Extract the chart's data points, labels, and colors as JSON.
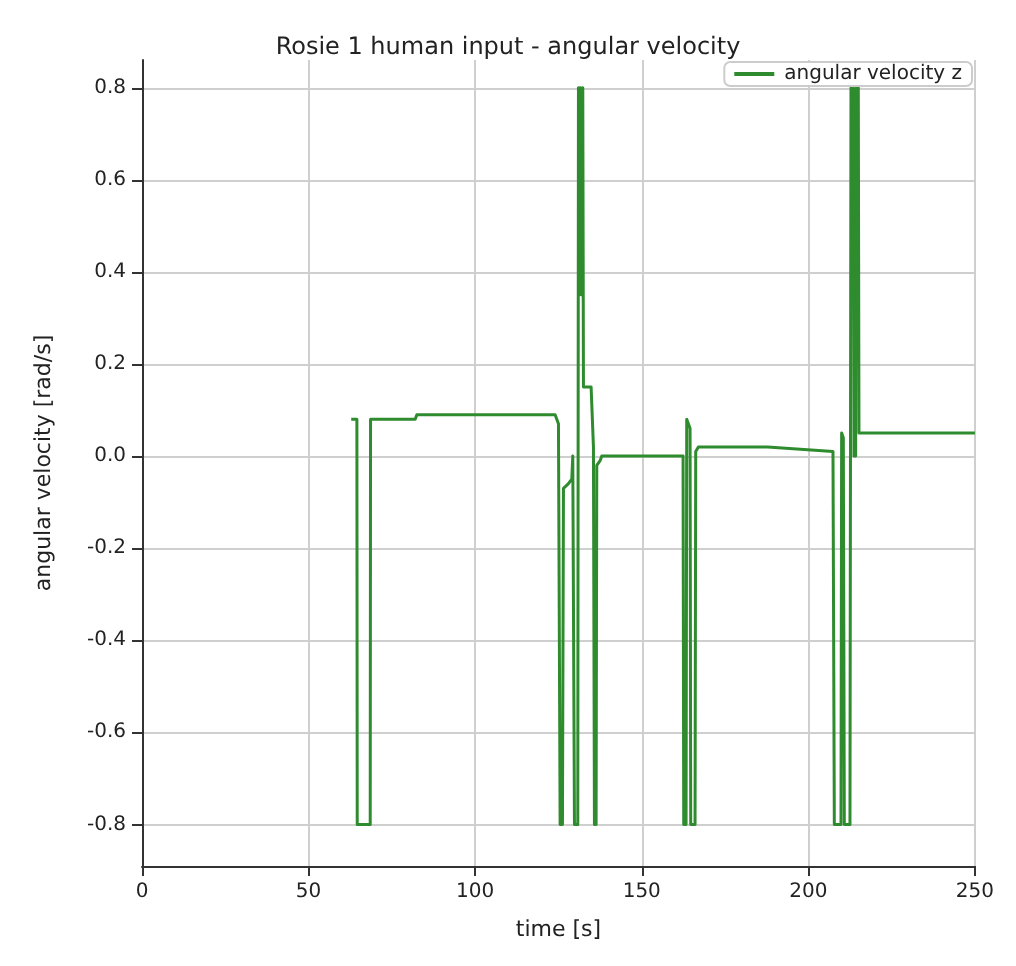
{
  "chart_data": {
    "type": "line",
    "title": "Rosie 1 human input - angular velocity",
    "xlabel": "time [s]",
    "ylabel": "angular velocity [rad/s]",
    "xlim": [
      0,
      250
    ],
    "xticks": [
      0,
      50,
      100,
      150,
      200,
      250
    ],
    "ylim": [
      -0.89,
      0.86
    ],
    "yticks": [
      -0.8,
      -0.6,
      -0.4,
      -0.2,
      {
        "value": 0,
        "label": "0.0"
      },
      0.2,
      0.4,
      0.6,
      0.8
    ],
    "grid": true,
    "legend": "top right",
    "series": [
      {
        "name": "angular velocity z",
        "color": "#2e8b2e",
        "x": [
          62.8,
          64.5,
          64.6,
          68.5,
          68.6,
          82,
          82.5,
          124,
          125,
          125.5,
          126.2,
          126.5,
          128,
          129,
          129.3,
          129.6,
          129.8,
          130.8,
          131,
          131.3,
          131.6,
          132,
          132.3,
          132.5,
          134.8,
          135.5,
          135.8,
          136.3,
          136.5,
          137.5,
          138,
          162.4,
          162.6,
          163.3,
          163.5,
          164,
          164.5,
          164.7,
          166,
          166.2,
          167,
          187.8,
          207.4,
          207.8,
          209.8,
          210,
          210.5,
          210.8,
          212.5,
          212.8,
          213.5,
          213.7,
          214.2,
          214.4,
          215,
          215.2,
          250
        ],
        "values": [
          0.08,
          0.08,
          -0.8,
          -0.8,
          0.08,
          0.08,
          0.09,
          0.09,
          0.07,
          -0.8,
          -0.8,
          -0.07,
          -0.06,
          -0.05,
          0,
          0,
          -0.8,
          -0.8,
          0.8,
          0.35,
          0.8,
          0.35,
          0.8,
          0.15,
          0.15,
          0.02,
          -0.8,
          -0.8,
          -0.02,
          -0.01,
          0,
          0,
          -0.8,
          -0.8,
          0.08,
          0.07,
          0.06,
          -0.8,
          -0.8,
          0.01,
          0.02,
          0.02,
          0.01,
          -0.8,
          -0.8,
          0.05,
          0.04,
          -0.8,
          -0.8,
          0.8,
          0.8,
          0,
          0,
          0.8,
          0.8,
          0.05,
          0.05
        ]
      }
    ]
  }
}
